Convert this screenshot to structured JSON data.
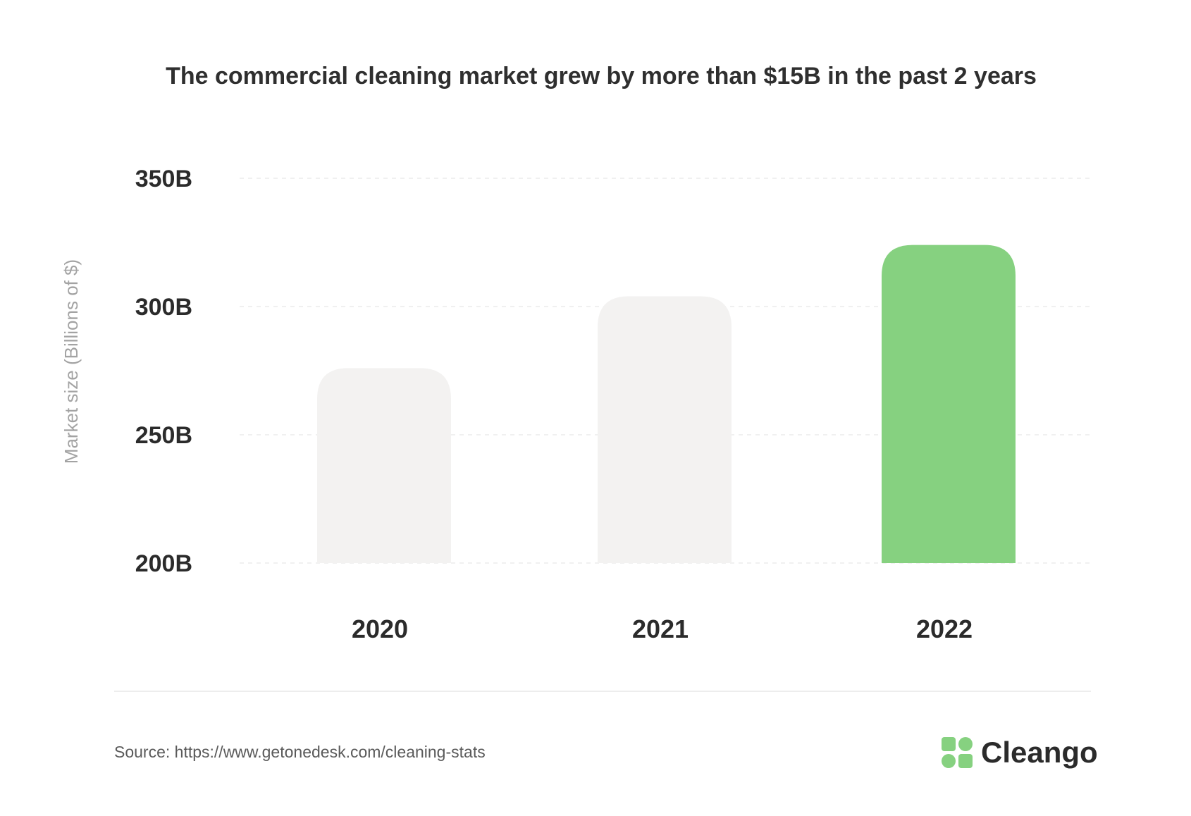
{
  "chart_data": {
    "type": "bar",
    "title": "The commercial cleaning market grew by more than $15B in the past 2 years",
    "ylabel": "Market size (Billions of $)",
    "xlabel": "",
    "categories": [
      "2020",
      "2021",
      "2022"
    ],
    "values": [
      276,
      304,
      324
    ],
    "ylim": [
      200,
      350
    ],
    "yticks": [
      200,
      250,
      300,
      350
    ],
    "ytick_labels": [
      "200B",
      "250B",
      "300B",
      "350B"
    ],
    "grid": true,
    "bar_colors": [
      "#f3f2f1",
      "#f3f2f1",
      "#86d180"
    ],
    "highlight_category": "2022"
  },
  "footer": {
    "source": "Source: https://www.getonedesk.com/cleaning-stats"
  },
  "brand": {
    "name": "Cleango",
    "icon": "cleango-logo-icon",
    "color": "#86d180"
  }
}
